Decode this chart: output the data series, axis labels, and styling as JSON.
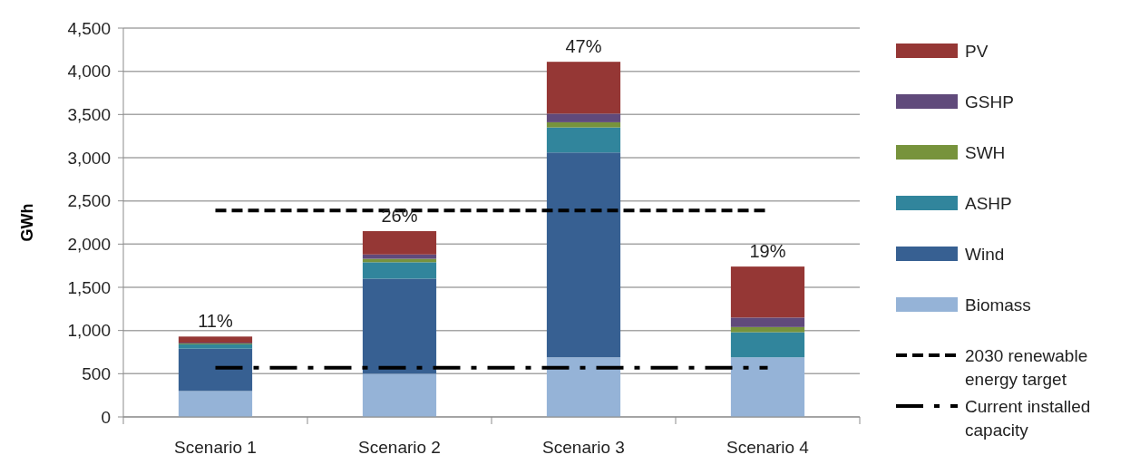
{
  "chart_data": {
    "type": "bar",
    "stacked": true,
    "ylabel": "GWh",
    "categories": [
      "Scenario 1",
      "Scenario 2",
      "Scenario 3",
      "Scenario 4"
    ],
    "series": [
      {
        "name": "Biomass",
        "color": "#95b3d7",
        "values": [
          300,
          500,
          690,
          690
        ]
      },
      {
        "name": "Wind",
        "color": "#376092",
        "values": [
          490,
          1100,
          2370,
          0
        ]
      },
      {
        "name": "ASHP",
        "color": "#31859c",
        "values": [
          50,
          190,
          290,
          290
        ]
      },
      {
        "name": "SWH",
        "color": "#77933c",
        "values": [
          10,
          40,
          60,
          60
        ]
      },
      {
        "name": "GSHP",
        "color": "#604a7b",
        "values": [
          10,
          50,
          100,
          110
        ]
      },
      {
        "name": "PV",
        "color": "#953735",
        "values": [
          70,
          270,
          600,
          590
        ]
      }
    ],
    "ylim": [
      0,
      4500
    ],
    "yticks": [
      {
        "value": 0,
        "label": "0"
      },
      {
        "value": 500,
        "label": "500"
      },
      {
        "value": 1000,
        "label": "1,000"
      },
      {
        "value": 1500,
        "label": "1,500"
      },
      {
        "value": 2000,
        "label": "2,000"
      },
      {
        "value": 2500,
        "label": "2,500"
      },
      {
        "value": 3000,
        "label": "3,000"
      },
      {
        "value": 3500,
        "label": "3,500"
      },
      {
        "value": 4000,
        "label": "4,000"
      },
      {
        "value": 4500,
        "label": "4,500"
      }
    ],
    "grid": "y",
    "legend": "right",
    "ref_lines": [
      {
        "axis": "y",
        "value": 2390,
        "label": "2030 renewable energy target",
        "color": "#000000",
        "line_style": "dashed"
      },
      {
        "axis": "y",
        "value": 570,
        "label": "Current installed capacity",
        "color": "#000000",
        "line_style": "dashdot"
      }
    ],
    "annotations": [
      {
        "text": "11%",
        "x": "Scenario 1",
        "y": 930
      },
      {
        "text": "26%",
        "x": "Scenario 2",
        "y": 2150
      },
      {
        "text": "47%",
        "x": "Scenario 3",
        "y": 4110
      },
      {
        "text": "19%",
        "x": "Scenario 4",
        "y": 1740
      }
    ]
  }
}
